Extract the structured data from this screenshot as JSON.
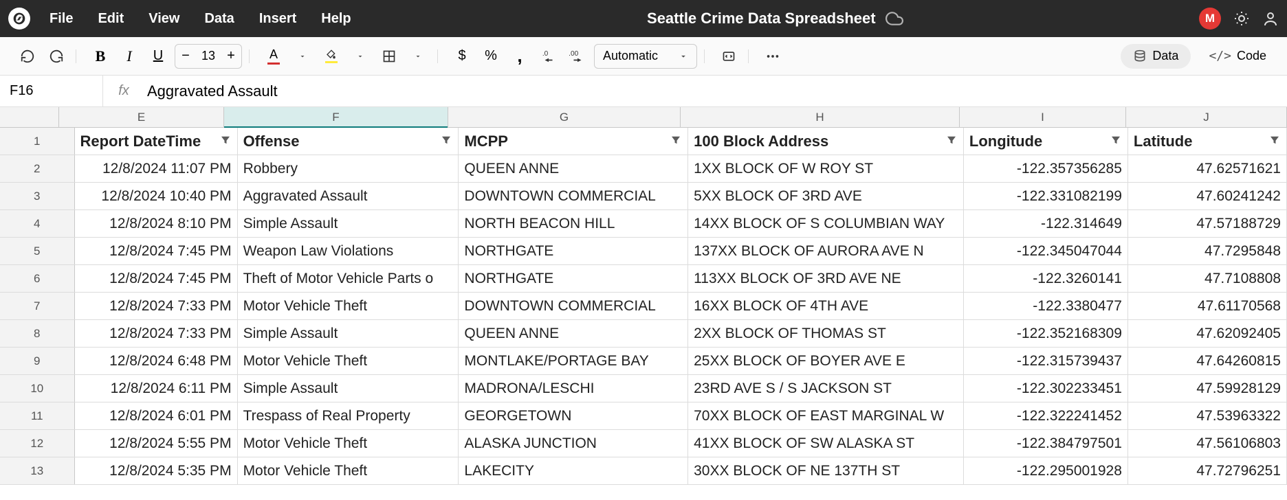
{
  "menubar": {
    "items": [
      "File",
      "Edit",
      "View",
      "Data",
      "Insert",
      "Help"
    ],
    "title": "Seattle Crime Data Spreadsheet",
    "avatar_initial": "M"
  },
  "toolbar": {
    "font_size": "13",
    "text_color": "#d32f2f",
    "fill_color": "#ffeb3b",
    "number_format": "Automatic",
    "data_btn": "Data",
    "code_btn": "Code"
  },
  "formula_bar": {
    "cell_ref": "F16",
    "fx_label": "fx",
    "content": "Aggravated Assault"
  },
  "grid": {
    "col_letters": [
      "E",
      "F",
      "G",
      "H",
      "I",
      "J"
    ],
    "selected_col": "F",
    "col_widths_class": [
      "w-E",
      "w-F",
      "w-G",
      "w-H",
      "w-I",
      "w-J"
    ],
    "headers": [
      "Report DateTime",
      "Offense",
      "MCPP",
      "100 Block Address",
      "Longitude",
      "Latitude"
    ],
    "header_has_filter": [
      true,
      true,
      true,
      true,
      true,
      true
    ],
    "rows": [
      {
        "n": 1,
        "cells": null
      },
      {
        "n": 2,
        "cells": [
          "12/8/2024 11:07 PM",
          "Robbery",
          "QUEEN ANNE",
          "1XX BLOCK OF W ROY ST",
          "-122.357356285",
          "47.62571621"
        ]
      },
      {
        "n": 3,
        "cells": [
          "12/8/2024 10:40 PM",
          "Aggravated Assault",
          "DOWNTOWN COMMERCIAL",
          "5XX BLOCK OF 3RD AVE",
          "-122.331082199",
          "47.60241242"
        ]
      },
      {
        "n": 4,
        "cells": [
          "12/8/2024  8:10 PM",
          "Simple Assault",
          "NORTH BEACON HILL",
          "14XX BLOCK OF S COLUMBIAN WAY",
          "-122.314649",
          "47.57188729"
        ]
      },
      {
        "n": 5,
        "cells": [
          "12/8/2024  7:45 PM",
          "Weapon Law Violations",
          "NORTHGATE",
          "137XX BLOCK OF AURORA AVE N",
          "-122.345047044",
          "47.7295848"
        ]
      },
      {
        "n": 6,
        "cells": [
          "12/8/2024  7:45 PM",
          "Theft of Motor Vehicle Parts o",
          "NORTHGATE",
          "113XX BLOCK OF 3RD AVE NE",
          "-122.3260141",
          "47.7108808"
        ]
      },
      {
        "n": 7,
        "cells": [
          "12/8/2024  7:33 PM",
          "Motor Vehicle Theft",
          "DOWNTOWN COMMERCIAL",
          "16XX BLOCK OF 4TH AVE",
          "-122.3380477",
          "47.61170568"
        ]
      },
      {
        "n": 8,
        "cells": [
          "12/8/2024  7:33 PM",
          "Simple Assault",
          "QUEEN ANNE",
          "2XX BLOCK OF THOMAS ST",
          "-122.352168309",
          "47.62092405"
        ]
      },
      {
        "n": 9,
        "cells": [
          "12/8/2024  6:48 PM",
          "Motor Vehicle Theft",
          "MONTLAKE/PORTAGE BAY",
          "25XX BLOCK OF BOYER AVE E",
          "-122.315739437",
          "47.64260815"
        ]
      },
      {
        "n": 10,
        "cells": [
          "12/8/2024  6:11 PM",
          "Simple Assault",
          "MADRONA/LESCHI",
          "23RD AVE S / S JACKSON ST",
          "-122.302233451",
          "47.59928129"
        ]
      },
      {
        "n": 11,
        "cells": [
          "12/8/2024  6:01 PM",
          "Trespass of Real Property",
          "GEORGETOWN",
          "70XX BLOCK OF EAST MARGINAL W",
          "-122.322241452",
          "47.53963322"
        ]
      },
      {
        "n": 12,
        "cells": [
          "12/8/2024  5:55 PM",
          "Motor Vehicle Theft",
          "ALASKA JUNCTION",
          "41XX BLOCK OF SW ALASKA ST",
          "-122.384797501",
          "47.56106803"
        ]
      },
      {
        "n": 13,
        "cells": [
          "12/8/2024  5:35 PM",
          "Motor Vehicle Theft",
          "LAKECITY",
          "30XX BLOCK OF NE 137TH ST",
          "-122.295001928",
          "47.72796251"
        ]
      }
    ],
    "numeric_cols": [
      0,
      4,
      5
    ]
  }
}
